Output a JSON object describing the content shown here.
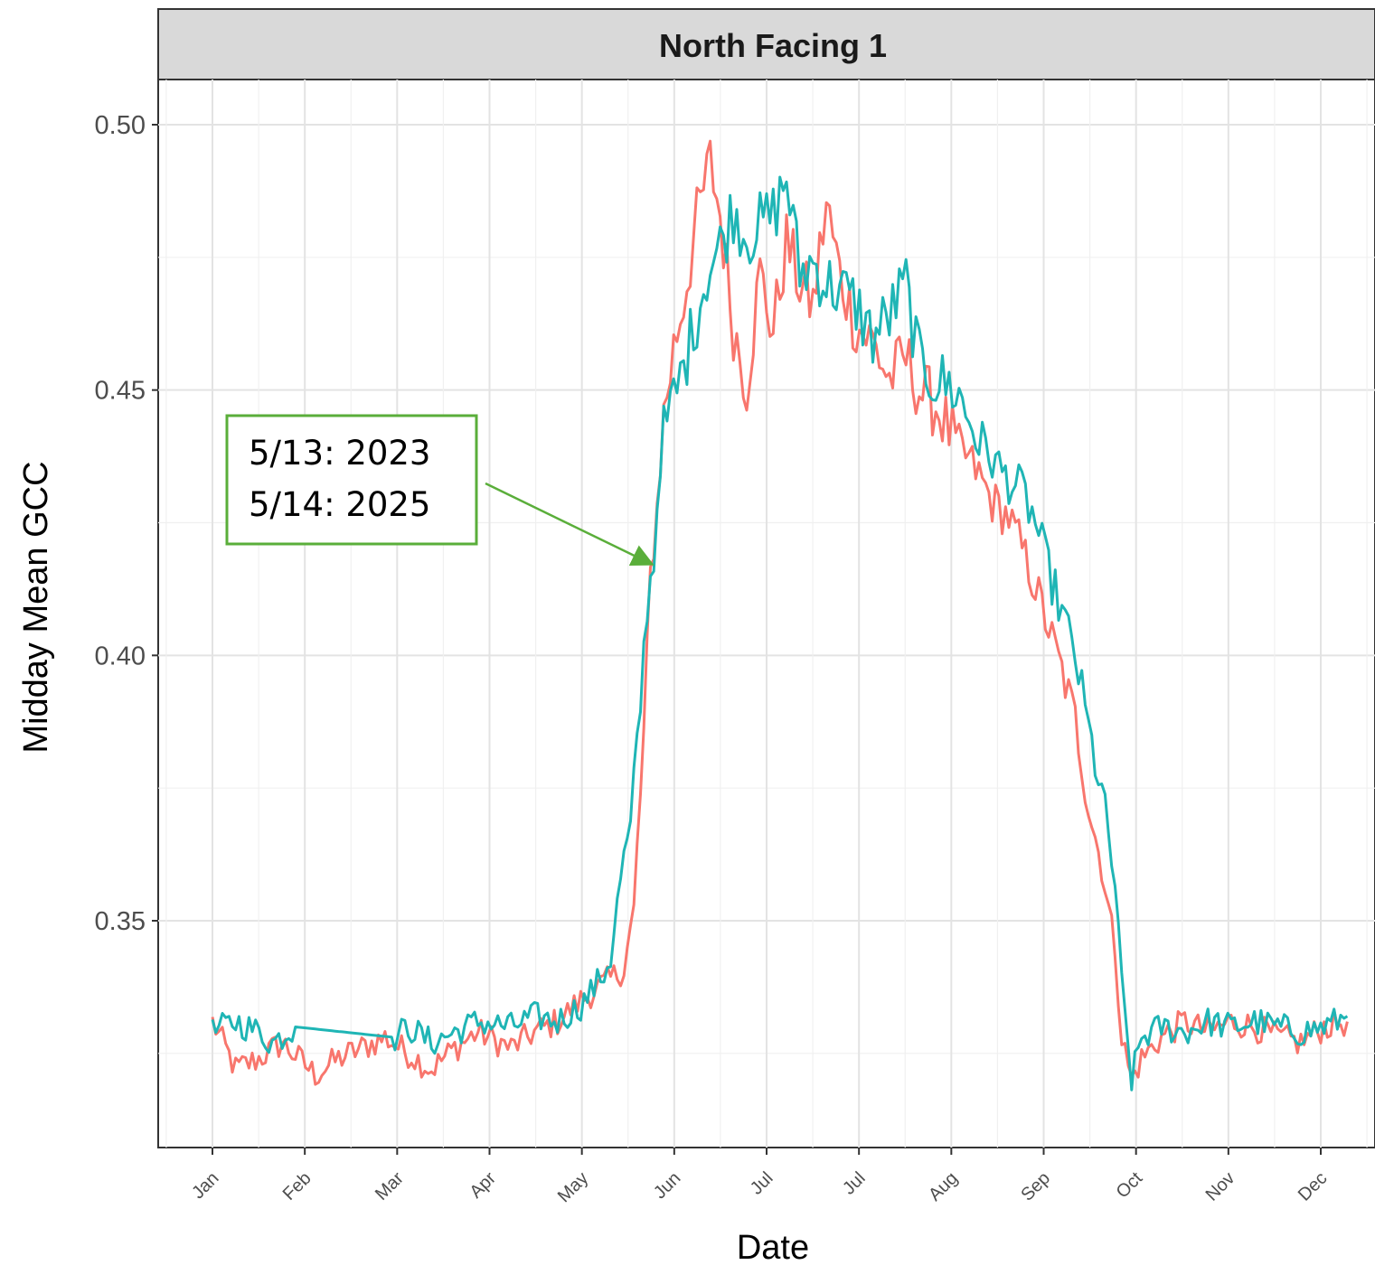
{
  "chart_data": {
    "type": "line",
    "title": "North Facing 1",
    "xlabel": "Date",
    "ylabel": "Midday Mean GCC",
    "x_tick_labels": [
      "Jan",
      "Feb",
      "Mar",
      "Apr",
      "May",
      "Jun",
      "Jul",
      "Jul",
      "Aug",
      "Sep",
      "Oct",
      "Nov",
      "Dec"
    ],
    "y_ticks": [
      "0.35",
      "0.40",
      "0.45",
      "0.50"
    ],
    "ylim": [
      0.312,
      0.508
    ],
    "grid": true,
    "legend": "none",
    "colors": {
      "red": "#F8766D",
      "teal": "#1FB5B5",
      "annotation": "#5AAE3A"
    },
    "series": [
      {
        "color": "#F8766D",
        "points": [
          [
            "01-01",
            0.331
          ],
          [
            "01-08",
            0.322
          ],
          [
            "01-15",
            0.324
          ],
          [
            "01-22",
            0.327
          ],
          [
            "02-01",
            0.321
          ],
          [
            "02-08",
            0.324
          ],
          [
            "02-15",
            0.326
          ],
          [
            "02-22",
            0.328
          ],
          [
            "03-01",
            0.325
          ],
          [
            "03-08",
            0.322
          ],
          [
            "03-15",
            0.326
          ],
          [
            "03-22",
            0.329
          ],
          [
            "04-01",
            0.326
          ],
          [
            "04-08",
            0.329
          ],
          [
            "04-15",
            0.331
          ],
          [
            "04-22",
            0.335
          ],
          [
            "05-01",
            0.339
          ],
          [
            "05-05",
            0.341
          ],
          [
            "05-08",
            0.352
          ],
          [
            "05-11",
            0.385
          ],
          [
            "05-13",
            0.415
          ],
          [
            "05-15",
            0.428
          ],
          [
            "05-17",
            0.445
          ],
          [
            "05-20",
            0.458
          ],
          [
            "05-23",
            0.467
          ],
          [
            "05-27",
            0.482
          ],
          [
            "05-31",
            0.493
          ],
          [
            "06-03",
            0.483
          ],
          [
            "06-07",
            0.462
          ],
          [
            "06-11",
            0.451
          ],
          [
            "06-15",
            0.472
          ],
          [
            "06-19",
            0.461
          ],
          [
            "06-23",
            0.478
          ],
          [
            "06-27",
            0.47
          ],
          [
            "07-01",
            0.466
          ],
          [
            "07-05",
            0.485
          ],
          [
            "07-09",
            0.472
          ],
          [
            "07-14",
            0.462
          ],
          [
            "07-19",
            0.459
          ],
          [
            "07-24",
            0.452
          ],
          [
            "07-29",
            0.456
          ],
          [
            "08-02",
            0.45
          ],
          [
            "08-07",
            0.447
          ],
          [
            "08-13",
            0.44
          ],
          [
            "08-19",
            0.435
          ],
          [
            "08-24",
            0.429
          ],
          [
            "08-29",
            0.426
          ],
          [
            "09-02",
            0.42
          ],
          [
            "09-06",
            0.413
          ],
          [
            "09-10",
            0.405
          ],
          [
            "09-14",
            0.397
          ],
          [
            "09-18",
            0.388
          ],
          [
            "09-22",
            0.372
          ],
          [
            "09-26",
            0.36
          ],
          [
            "09-30",
            0.345
          ],
          [
            "10-02",
            0.328
          ],
          [
            "10-05",
            0.32
          ],
          [
            "10-08",
            0.324
          ],
          [
            "10-14",
            0.328
          ],
          [
            "10-21",
            0.331
          ],
          [
            "10-28",
            0.329
          ],
          [
            "11-04",
            0.331
          ],
          [
            "11-11",
            0.33
          ],
          [
            "11-18",
            0.328
          ],
          [
            "11-25",
            0.327
          ],
          [
            "12-02",
            0.33
          ],
          [
            "12-09",
            0.331
          ]
        ]
      },
      {
        "color": "#1FB5B5",
        "points": [
          [
            "01-01",
            0.329
          ],
          [
            "01-08",
            0.331
          ],
          [
            "01-15",
            0.329
          ],
          [
            "01-19",
            0.327
          ],
          [
            "01-26",
            0.33
          ],
          [
            "02-25",
            0.328
          ],
          [
            "03-01",
            0.33
          ],
          [
            "03-08",
            0.327
          ],
          [
            "03-15",
            0.329
          ],
          [
            "03-22",
            0.331
          ],
          [
            "04-01",
            0.33
          ],
          [
            "04-08",
            0.332
          ],
          [
            "04-15",
            0.331
          ],
          [
            "04-22",
            0.334
          ],
          [
            "04-29",
            0.34
          ],
          [
            "05-01",
            0.343
          ],
          [
            "05-04",
            0.358
          ],
          [
            "05-07",
            0.367
          ],
          [
            "05-10",
            0.391
          ],
          [
            "05-12",
            0.41
          ],
          [
            "05-14",
            0.418
          ],
          [
            "05-16",
            0.438
          ],
          [
            "05-18",
            0.444
          ],
          [
            "05-22",
            0.452
          ],
          [
            "05-26",
            0.462
          ],
          [
            "05-30",
            0.472
          ],
          [
            "06-03",
            0.477
          ],
          [
            "06-07",
            0.484
          ],
          [
            "06-11",
            0.479
          ],
          [
            "06-15",
            0.481
          ],
          [
            "06-19",
            0.483
          ],
          [
            "06-23",
            0.49
          ],
          [
            "06-27",
            0.472
          ],
          [
            "07-01",
            0.474
          ],
          [
            "07-05",
            0.47
          ],
          [
            "07-09",
            0.469
          ],
          [
            "07-14",
            0.466
          ],
          [
            "07-19",
            0.46
          ],
          [
            "07-24",
            0.464
          ],
          [
            "07-29",
            0.47
          ],
          [
            "08-02",
            0.455
          ],
          [
            "08-07",
            0.452
          ],
          [
            "08-13",
            0.45
          ],
          [
            "08-19",
            0.442
          ],
          [
            "08-24",
            0.437
          ],
          [
            "08-29",
            0.433
          ],
          [
            "09-02",
            0.431
          ],
          [
            "09-06",
            0.425
          ],
          [
            "09-10",
            0.416
          ],
          [
            "09-14",
            0.408
          ],
          [
            "09-18",
            0.4
          ],
          [
            "09-22",
            0.386
          ],
          [
            "09-26",
            0.374
          ],
          [
            "09-30",
            0.357
          ],
          [
            "10-02",
            0.338
          ],
          [
            "10-05",
            0.32
          ],
          [
            "10-08",
            0.328
          ],
          [
            "10-14",
            0.33
          ],
          [
            "10-21",
            0.329
          ],
          [
            "10-28",
            0.331
          ],
          [
            "11-04",
            0.33
          ],
          [
            "11-11",
            0.331
          ],
          [
            "11-18",
            0.33
          ],
          [
            "11-25",
            0.329
          ],
          [
            "12-02",
            0.33
          ],
          [
            "12-09",
            0.332
          ]
        ]
      }
    ],
    "annotation": {
      "lines": [
        "5/13: 2023",
        "5/14: 2025"
      ],
      "points_to": [
        "05-14",
        0.417
      ]
    }
  }
}
